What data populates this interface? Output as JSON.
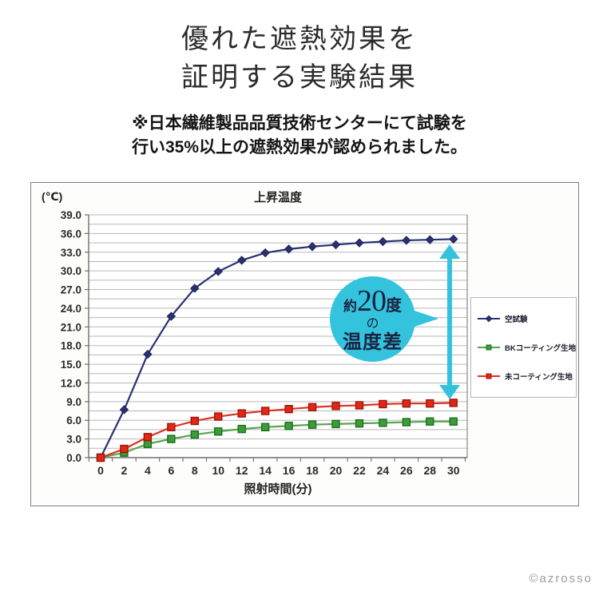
{
  "header": {
    "title_line1": "優れた遮熱効果を",
    "title_line2": "証明する実験結果",
    "note_line1": "※日本繊維製品品質技術センターにて試験を",
    "note_line2": "行い35%以上の遮熱効果が認められました。"
  },
  "chart_data": {
    "type": "line",
    "title": "上昇温度",
    "y_unit_label": "(℃)",
    "xlabel": "照射時間(分)",
    "ylim": [
      0,
      39
    ],
    "y_tick_step": 3.0,
    "y_minor_step": 1.5,
    "grid": true,
    "legend_position": "right",
    "x": [
      0,
      2,
      4,
      6,
      8,
      10,
      12,
      14,
      16,
      18,
      20,
      22,
      24,
      26,
      28,
      30
    ],
    "x_tick_labels": [
      "0",
      "2",
      "4",
      "6",
      "8",
      "10",
      "12",
      "14",
      "16",
      "18",
      "20",
      "22",
      "24",
      "26",
      "28",
      "30"
    ],
    "y_tick_labels": [
      "0.0",
      "3.0",
      "6.0",
      "9.0",
      "12.0",
      "15.0",
      "18.0",
      "21.0",
      "24.0",
      "27.0",
      "30.0",
      "33.0",
      "36.0",
      "39.0"
    ],
    "series": [
      {
        "name": "空試験",
        "color": "#283272",
        "marker": "diamond",
        "marker_edge": "#1c2454",
        "values": [
          0.0,
          7.7,
          16.6,
          22.7,
          27.2,
          29.9,
          31.7,
          32.9,
          33.5,
          33.9,
          34.2,
          34.5,
          34.7,
          34.9,
          35.0,
          35.1
        ]
      },
      {
        "name": "BKコーティング生地",
        "color": "#55a64b",
        "marker": "square",
        "marker_fill": "#3c9c38",
        "marker_edge": "#1e6f1e",
        "values": [
          0.0,
          0.8,
          2.2,
          3.0,
          3.7,
          4.2,
          4.6,
          4.9,
          5.1,
          5.3,
          5.4,
          5.5,
          5.6,
          5.7,
          5.8,
          5.8
        ]
      },
      {
        "name": "未コーティング生地",
        "color": "#dc3222",
        "marker": "square",
        "marker_fill": "#e02818",
        "marker_edge": "#a01408",
        "values": [
          0.0,
          1.4,
          3.3,
          4.9,
          5.9,
          6.6,
          7.1,
          7.5,
          7.8,
          8.1,
          8.3,
          8.4,
          8.6,
          8.7,
          8.7,
          8.8
        ]
      }
    ]
  },
  "annotation": {
    "circle_color": "#33c3dd",
    "callout_prefix": "約",
    "callout_number": "20",
    "callout_unit": "度",
    "callout_line2": "の",
    "callout_line3": "温度差"
  },
  "footer": {
    "copyright": "©azrosso"
  }
}
